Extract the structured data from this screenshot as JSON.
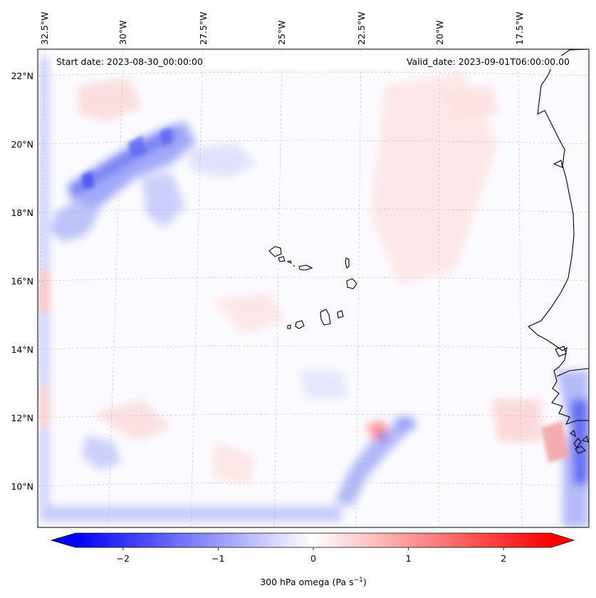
{
  "map": {
    "projection": "lambert-conformal",
    "start_date_text": "Start date: 2023-08-30_00:00:00",
    "valid_date_text": "Valid_date: 2023-09-01T06:00:00.00",
    "lon_labels": [
      "32.5°W",
      "30°W",
      "27.5°W",
      "25°W",
      "22.5°W",
      "20°W",
      "17.5°W"
    ],
    "lat_labels": [
      "22°N",
      "20°N",
      "18°N",
      "16°N",
      "14°N",
      "12°N",
      "10°N"
    ],
    "gridlines": "dashed, grey",
    "features": [
      "Cabo Verde islands",
      "West African coastline"
    ]
  },
  "colorbar": {
    "label_main": "300 hPa omega (Pa s",
    "label_exp": "−1",
    "label_close": ")",
    "tick_labels": [
      "−2",
      "−1",
      "0",
      "1",
      "2"
    ],
    "tick_values": [
      -2,
      -1,
      0,
      1,
      2
    ],
    "range": [
      -2.5,
      2.5
    ],
    "colormap": "bwr",
    "color_low": "#0000ff",
    "color_mid": "#ffffff",
    "color_high": "#ff0000",
    "extend": "both"
  }
}
